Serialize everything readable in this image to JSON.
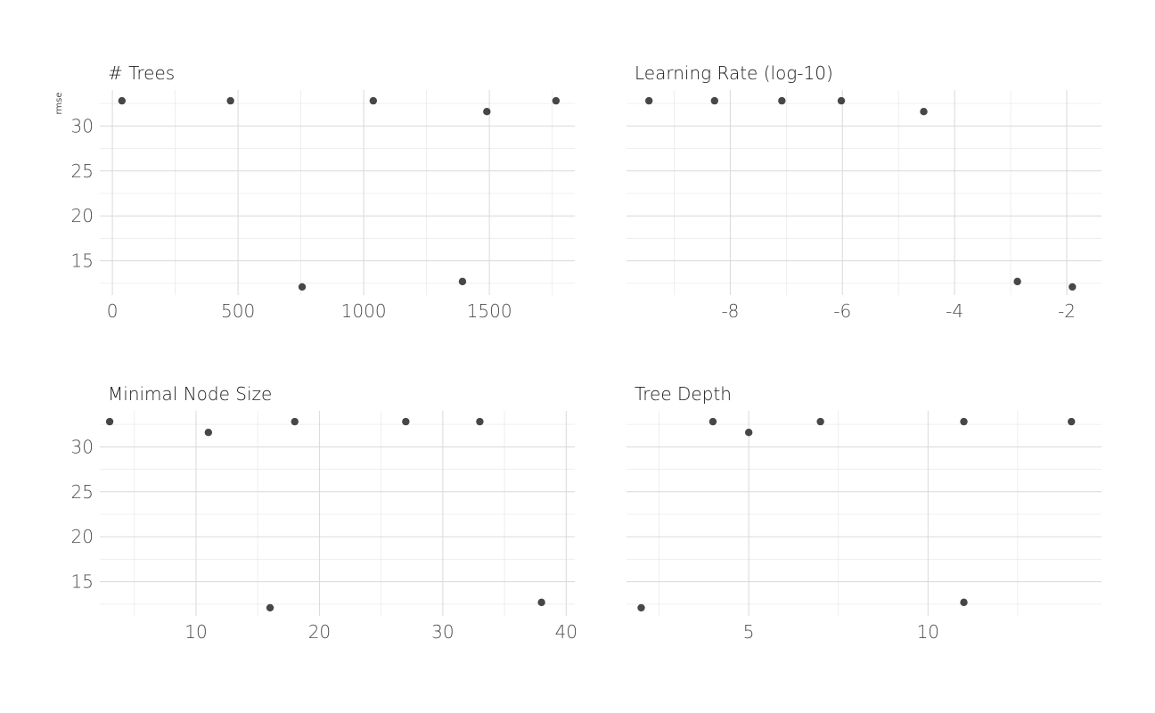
{
  "chart_data": {
    "type": "scatter",
    "ylabel": "rmse",
    "ylim": [
      11.2,
      34
    ],
    "y_ticks": [
      15,
      20,
      25,
      30
    ],
    "grid": true,
    "panels": [
      {
        "title": "# Trees",
        "xlim": [
          -50,
          1840
        ],
        "x_ticks": [
          0,
          500,
          1000,
          1500
        ],
        "x_tick_labels": [
          "0",
          "500",
          "1000",
          "1500"
        ],
        "points": [
          {
            "x": 38,
            "y": 32.8
          },
          {
            "x": 470,
            "y": 32.8
          },
          {
            "x": 1038,
            "y": 32.8
          },
          {
            "x": 1490,
            "y": 31.6
          },
          {
            "x": 1765,
            "y": 32.8
          },
          {
            "x": 755,
            "y": 12.1
          },
          {
            "x": 1393,
            "y": 12.7
          }
        ]
      },
      {
        "title": "Learning Rate (log-10)",
        "xlim": [
          -9.85,
          -1.38
        ],
        "x_ticks": [
          -8,
          -6,
          -4,
          -2
        ],
        "x_tick_labels": [
          "-8",
          "-6",
          "-4",
          "-2"
        ],
        "points": [
          {
            "x": -9.45,
            "y": 32.8
          },
          {
            "x": -8.28,
            "y": 32.8
          },
          {
            "x": -7.08,
            "y": 32.8
          },
          {
            "x": -6.02,
            "y": 32.8
          },
          {
            "x": -4.55,
            "y": 31.6
          },
          {
            "x": -2.88,
            "y": 12.7
          },
          {
            "x": -1.9,
            "y": 12.1
          }
        ]
      },
      {
        "title": "Minimal Node Size",
        "xlim": [
          2.2,
          40.7
        ],
        "x_ticks": [
          10,
          20,
          30,
          40
        ],
        "x_tick_labels": [
          "10",
          "20",
          "30",
          "40"
        ],
        "points": [
          {
            "x": 3,
            "y": 32.8
          },
          {
            "x": 11,
            "y": 31.6
          },
          {
            "x": 16,
            "y": 12.1
          },
          {
            "x": 18,
            "y": 32.8
          },
          {
            "x": 27,
            "y": 32.8
          },
          {
            "x": 33,
            "y": 32.8
          },
          {
            "x": 38,
            "y": 12.7
          }
        ]
      },
      {
        "title": "Tree Depth",
        "xlim": [
          1.59,
          14.84
        ],
        "x_ticks": [
          5,
          10
        ],
        "x_tick_labels": [
          "5",
          "10"
        ],
        "points": [
          {
            "x": 2,
            "y": 12.1
          },
          {
            "x": 4,
            "y": 32.8
          },
          {
            "x": 5,
            "y": 31.6
          },
          {
            "x": 7,
            "y": 32.8
          },
          {
            "x": 11,
            "y": 32.8
          },
          {
            "x": 11,
            "y": 12.7
          },
          {
            "x": 14,
            "y": 32.8
          }
        ]
      }
    ]
  }
}
